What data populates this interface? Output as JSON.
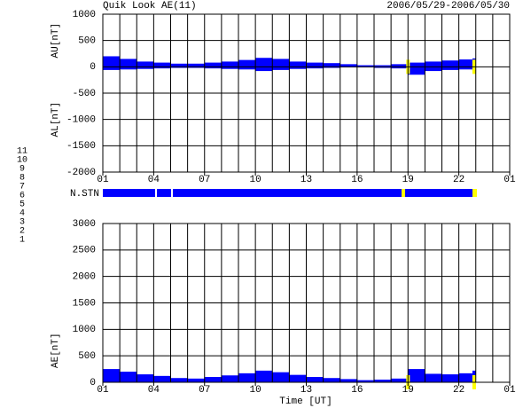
{
  "header": {
    "title": "Quik Look AE(11)",
    "period": "2006/05/29-2006/05/30",
    "xlabel": "Time [UT]",
    "nstn_label": "N.STN"
  },
  "stations": [
    {
      "label": "11",
      "color": "#00e0e0"
    },
    {
      "label": "10",
      "color": "#ff00ff"
    },
    {
      "label": "9",
      "color": "#4000c0"
    },
    {
      "label": "8",
      "color": "#ffff40"
    },
    {
      "label": "7",
      "color": "#80e080"
    },
    {
      "label": "6",
      "color": "#e00000"
    },
    {
      "label": "5",
      "color": "#e0e0e0"
    },
    {
      "label": "4",
      "color": "#a0a0a0"
    },
    {
      "label": "3",
      "color": "#008080"
    },
    {
      "label": "2",
      "color": "#8000c0"
    },
    {
      "label": "1",
      "color": "#0000e0"
    }
  ],
  "chart_data": [
    {
      "type": "bar",
      "ylabels": [
        "AU[nT]",
        "AL[nT]"
      ],
      "x": [
        0,
        1,
        2,
        3,
        4,
        5,
        6,
        7,
        8,
        9,
        10,
        11,
        12,
        13,
        14,
        15,
        16,
        17,
        18,
        19,
        20,
        21,
        21.8
      ],
      "series": [
        {
          "color": "#0000ff",
          "values": [
            200,
            150,
            100,
            80,
            60,
            60,
            80,
            100,
            130,
            170,
            150,
            100,
            80,
            70,
            50,
            30,
            30,
            50,
            80,
            100,
            120,
            140,
            160
          ]
        },
        {
          "color": "#0000ff",
          "values": [
            -60,
            -50,
            -40,
            -30,
            -20,
            -20,
            -30,
            -40,
            -50,
            -80,
            -60,
            -40,
            -30,
            -20,
            -10,
            -10,
            -20,
            -30,
            -150,
            -80,
            -60,
            -50,
            -70
          ]
        }
      ],
      "markers": {
        "color": "#ffff00",
        "x": [
          17.9,
          21.8
        ]
      },
      "xlim": [
        0,
        24
      ],
      "xticks": [
        {
          "value": 0,
          "label": "01"
        },
        {
          "value": 3,
          "label": "04"
        },
        {
          "value": 6,
          "label": "07"
        },
        {
          "value": 9,
          "label": "10"
        },
        {
          "value": 12,
          "label": "13"
        },
        {
          "value": 15,
          "label": "16"
        },
        {
          "value": 18,
          "label": "19"
        },
        {
          "value": 21,
          "label": "22"
        },
        {
          "value": 24,
          "label": "01"
        }
      ],
      "xgrid": [
        0,
        1,
        2,
        3,
        4,
        5,
        6,
        7,
        8,
        9,
        10,
        11,
        12,
        13,
        14,
        15,
        16,
        17,
        18,
        19,
        20,
        21,
        22,
        23,
        24
      ],
      "ylim": [
        -2000,
        1000
      ],
      "yticks": [
        -2000,
        -1500,
        -1000,
        -500,
        0,
        500,
        1000
      ]
    },
    {
      "type": "bar",
      "ylabels": [
        "AE[nT]"
      ],
      "x": [
        0,
        1,
        2,
        3,
        4,
        5,
        6,
        7,
        8,
        9,
        10,
        11,
        12,
        13,
        14,
        15,
        16,
        17,
        18,
        19,
        20,
        21,
        21.8
      ],
      "series": [
        {
          "color": "#0000ff",
          "values": [
            250,
            200,
            150,
            120,
            80,
            70,
            100,
            130,
            170,
            220,
            190,
            140,
            100,
            80,
            60,
            40,
            50,
            70,
            250,
            160,
            150,
            170,
            220
          ]
        }
      ],
      "markers": {
        "color": "#ffff00",
        "x": [
          17.9,
          21.8
        ]
      },
      "xlim": [
        0,
        24
      ],
      "xticks": [
        {
          "value": 0,
          "label": "01"
        },
        {
          "value": 3,
          "label": "04"
        },
        {
          "value": 6,
          "label": "07"
        },
        {
          "value": 9,
          "label": "10"
        },
        {
          "value": 12,
          "label": "13"
        },
        {
          "value": 15,
          "label": "16"
        },
        {
          "value": 18,
          "label": "19"
        },
        {
          "value": 21,
          "label": "22"
        },
        {
          "value": 24,
          "label": "01"
        }
      ],
      "xgrid": [
        0,
        1,
        2,
        3,
        4,
        5,
        6,
        7,
        8,
        9,
        10,
        11,
        12,
        13,
        14,
        15,
        16,
        17,
        18,
        19,
        20,
        21,
        22,
        23,
        24
      ],
      "ylim": [
        0,
        3000
      ],
      "yticks": [
        0,
        500,
        1000,
        1500,
        2000,
        2500,
        3000
      ]
    }
  ]
}
